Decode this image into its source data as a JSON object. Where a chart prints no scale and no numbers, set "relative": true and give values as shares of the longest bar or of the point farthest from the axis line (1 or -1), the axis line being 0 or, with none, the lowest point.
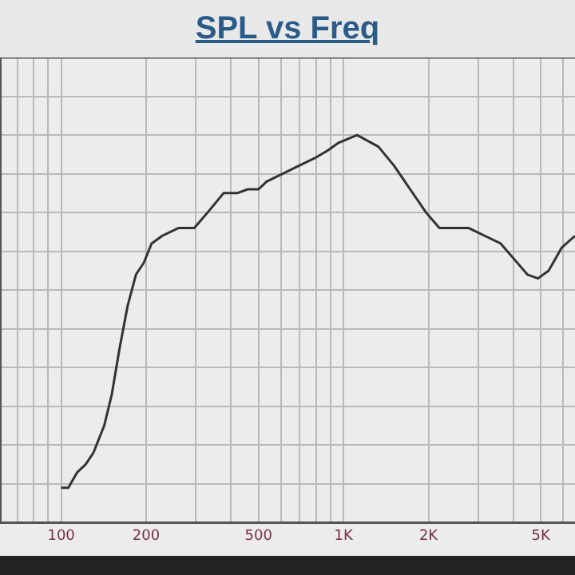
{
  "chart_data": {
    "type": "line",
    "title": "SPL vs Freq",
    "relative": true,
    "log": "x",
    "grid": true,
    "marker": "none",
    "line_style": "solid",
    "legend": false,
    "xlim": [
      60.7,
      6607
    ],
    "xticks": [
      {
        "value": 70,
        "label": null
      },
      {
        "value": 80,
        "label": null
      },
      {
        "value": 90,
        "label": null
      },
      100,
      200,
      {
        "value": 300,
        "label": null
      },
      {
        "value": 400,
        "label": null
      },
      500,
      {
        "value": 600,
        "label": null
      },
      {
        "value": 700,
        "label": null
      },
      {
        "value": 800,
        "label": null
      },
      {
        "value": 900,
        "label": null
      },
      {
        "value": 1000,
        "label": "1K"
      },
      {
        "value": 2000,
        "label": "2K"
      },
      {
        "value": 3000,
        "label": null
      },
      {
        "value": 4000,
        "label": null
      },
      {
        "value": 5000,
        "label": "5K"
      },
      {
        "value": 6000,
        "label": null
      }
    ],
    "x": [
      100,
      106,
      114,
      122,
      130,
      142,
      151,
      161,
      172,
      184,
      196,
      209,
      228,
      260,
      296,
      330,
      376,
      420,
      458,
      500,
      534,
      608,
      692,
      789,
      879,
      960,
      1117,
      1329,
      1513,
      1722,
      1961,
      2186,
      2437,
      2777,
      3164,
      3604,
      4020,
      4481,
      4885,
      5327,
      5937,
      6607
    ],
    "series": [
      {
        "color": "#333333",
        "values": [
          0.09,
          0.09,
          0.13,
          0.15,
          0.18,
          0.25,
          0.33,
          0.45,
          0.56,
          0.64,
          0.67,
          0.72,
          0.74,
          0.76,
          0.76,
          0.8,
          0.85,
          0.85,
          0.86,
          0.86,
          0.88,
          0.9,
          0.92,
          0.94,
          0.96,
          0.98,
          1.0,
          0.97,
          0.92,
          0.86,
          0.8,
          0.76,
          0.76,
          0.76,
          0.74,
          0.72,
          0.68,
          0.64,
          0.63,
          0.65,
          0.71,
          0.74
        ]
      }
    ]
  }
}
